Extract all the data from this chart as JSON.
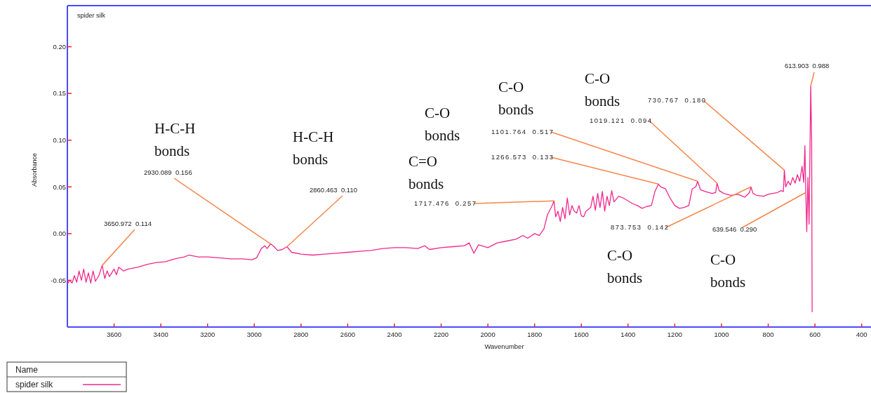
{
  "chart_data": {
    "type": "line",
    "title": "spider silk",
    "xlabel": "Wavenumber",
    "ylabel": "Absorbance",
    "xlim": [
      3800,
      360
    ],
    "ylim": [
      -0.1,
      0.244
    ],
    "xticks": [
      3600,
      3400,
      3200,
      3000,
      2800,
      2600,
      2400,
      2200,
      2000,
      1800,
      1600,
      1400,
      1200,
      1000,
      800,
      600,
      400
    ],
    "yticks": [
      {
        "value": -0.05,
        "label": "-0.05"
      },
      {
        "value": 0,
        "label": "0.00"
      },
      {
        "value": 0.05,
        "label": "0.05"
      },
      {
        "value": 0.1,
        "label": "0.10"
      },
      {
        "value": 0.15,
        "label": "0.15"
      },
      {
        "value": 0.2,
        "label": "0.20"
      }
    ],
    "grid": false,
    "legend": "bottom left",
    "legend_title": "Name",
    "x": [
      3800,
      3790,
      3780,
      3770,
      3760,
      3750,
      3740,
      3730,
      3720,
      3710,
      3700,
      3690,
      3680,
      3665,
      3651,
      3640,
      3630,
      3620,
      3600,
      3590,
      3580,
      3560,
      3540,
      3500,
      3460,
      3420,
      3380,
      3340,
      3300,
      3280,
      3240,
      3200,
      3150,
      3100,
      3050,
      3010,
      2990,
      2970,
      2955,
      2945,
      2930,
      2915,
      2900,
      2880,
      2860,
      2840,
      2800,
      2750,
      2700,
      2650,
      2600,
      2550,
      2500,
      2450,
      2400,
      2350,
      2300,
      2270,
      2250,
      2200,
      2150,
      2100,
      2080,
      2060,
      2040,
      2000,
      1960,
      1920,
      1880,
      1850,
      1830,
      1800,
      1780,
      1760,
      1745,
      1735,
      1725,
      1717,
      1710,
      1700,
      1690,
      1680,
      1670,
      1660,
      1650,
      1640,
      1630,
      1620,
      1610,
      1600,
      1590,
      1580,
      1560,
      1550,
      1540,
      1530,
      1520,
      1510,
      1500,
      1490,
      1480,
      1470,
      1460,
      1440,
      1420,
      1400,
      1380,
      1360,
      1340,
      1320,
      1300,
      1285,
      1270,
      1260,
      1240,
      1220,
      1200,
      1180,
      1160,
      1140,
      1125,
      1110,
      1102,
      1090,
      1070,
      1040,
      1025,
      1019,
      1010,
      990,
      960,
      930,
      900,
      880,
      874,
      865,
      850,
      820,
      800,
      780,
      760,
      745,
      735,
      731,
      725,
      715,
      705,
      695,
      685,
      675,
      665,
      655,
      648,
      643,
      639,
      635,
      630,
      625,
      618,
      614,
      612
    ],
    "series": [
      {
        "name": "spider silk",
        "color": "#f0288c",
        "values": [
          -0.054,
          -0.05,
          -0.053,
          -0.045,
          -0.052,
          -0.04,
          -0.05,
          -0.038,
          -0.052,
          -0.042,
          -0.053,
          -0.04,
          -0.051,
          -0.045,
          -0.034,
          -0.048,
          -0.04,
          -0.046,
          -0.038,
          -0.044,
          -0.036,
          -0.04,
          -0.038,
          -0.036,
          -0.033,
          -0.031,
          -0.03,
          -0.027,
          -0.025,
          -0.023,
          -0.025,
          -0.025,
          -0.026,
          -0.027,
          -0.027,
          -0.028,
          -0.026,
          -0.016,
          -0.013,
          -0.016,
          -0.011,
          -0.014,
          -0.018,
          -0.017,
          -0.014,
          -0.02,
          -0.022,
          -0.023,
          -0.022,
          -0.021,
          -0.02,
          -0.019,
          -0.018,
          -0.016,
          -0.015,
          -0.015,
          -0.016,
          -0.013,
          -0.017,
          -0.015,
          -0.014,
          -0.013,
          -0.01,
          -0.021,
          -0.012,
          -0.015,
          -0.01,
          -0.008,
          -0.006,
          -0.002,
          -0.005,
          0.0,
          -0.002,
          0.005,
          0.02,
          0.025,
          0.03,
          0.035,
          0.018,
          0.024,
          0.013,
          0.028,
          0.016,
          0.038,
          0.02,
          0.03,
          0.024,
          0.022,
          0.03,
          0.019,
          0.018,
          0.024,
          0.028,
          0.04,
          0.025,
          0.043,
          0.028,
          0.045,
          0.024,
          0.04,
          0.03,
          0.046,
          0.034,
          0.04,
          0.038,
          0.035,
          0.032,
          0.03,
          0.027,
          0.029,
          0.03,
          0.045,
          0.053,
          0.05,
          0.048,
          0.038,
          0.03,
          0.027,
          0.028,
          0.03,
          0.048,
          0.05,
          0.056,
          0.047,
          0.045,
          0.043,
          0.044,
          0.054,
          0.046,
          0.043,
          0.041,
          0.042,
          0.039,
          0.044,
          0.05,
          0.043,
          0.041,
          0.04,
          0.042,
          0.043,
          0.044,
          0.046,
          0.045,
          0.068,
          0.05,
          0.056,
          0.052,
          0.06,
          0.054,
          0.063,
          0.056,
          0.072,
          0.055,
          0.094,
          0.044,
          0.002,
          0.06,
          0.01,
          0.158,
          0.1,
          -0.084
        ]
      }
    ],
    "annotations": [
      "H-C-H bonds",
      "H-C-H bonds",
      "C-O bonds",
      "C=O bonds",
      "C-O bonds",
      "C-O bonds",
      "C-O bonds",
      "C-O bonds",
      {
        "text": "3650.972  0.114",
        "x": 3651,
        "y": -0.034
      },
      {
        "text": "2930.089  0.156",
        "x": 2930,
        "y": -0.011
      },
      {
        "text": "2860.463  0.110",
        "x": 2860,
        "y": -0.014
      },
      {
        "text": "1717.476  0.257",
        "x": 1717,
        "y": 0.035
      },
      {
        "text": "1266.573  0.133",
        "x": 1270,
        "y": 0.053
      },
      {
        "text": "1101.764  0.517",
        "x": 1102,
        "y": 0.056
      },
      {
        "text": "1019.121  0.094",
        "x": 1019,
        "y": 0.054
      },
      {
        "text": "730.767  0.180",
        "x": 731,
        "y": 0.068
      },
      {
        "text": "873.753  0.142",
        "x": 874,
        "y": 0.05
      },
      {
        "text": "639.546  0.290",
        "x": 639,
        "y": 0.044
      },
      {
        "text": "613.903  0.988",
        "x": 618,
        "y": 0.158
      }
    ]
  }
}
